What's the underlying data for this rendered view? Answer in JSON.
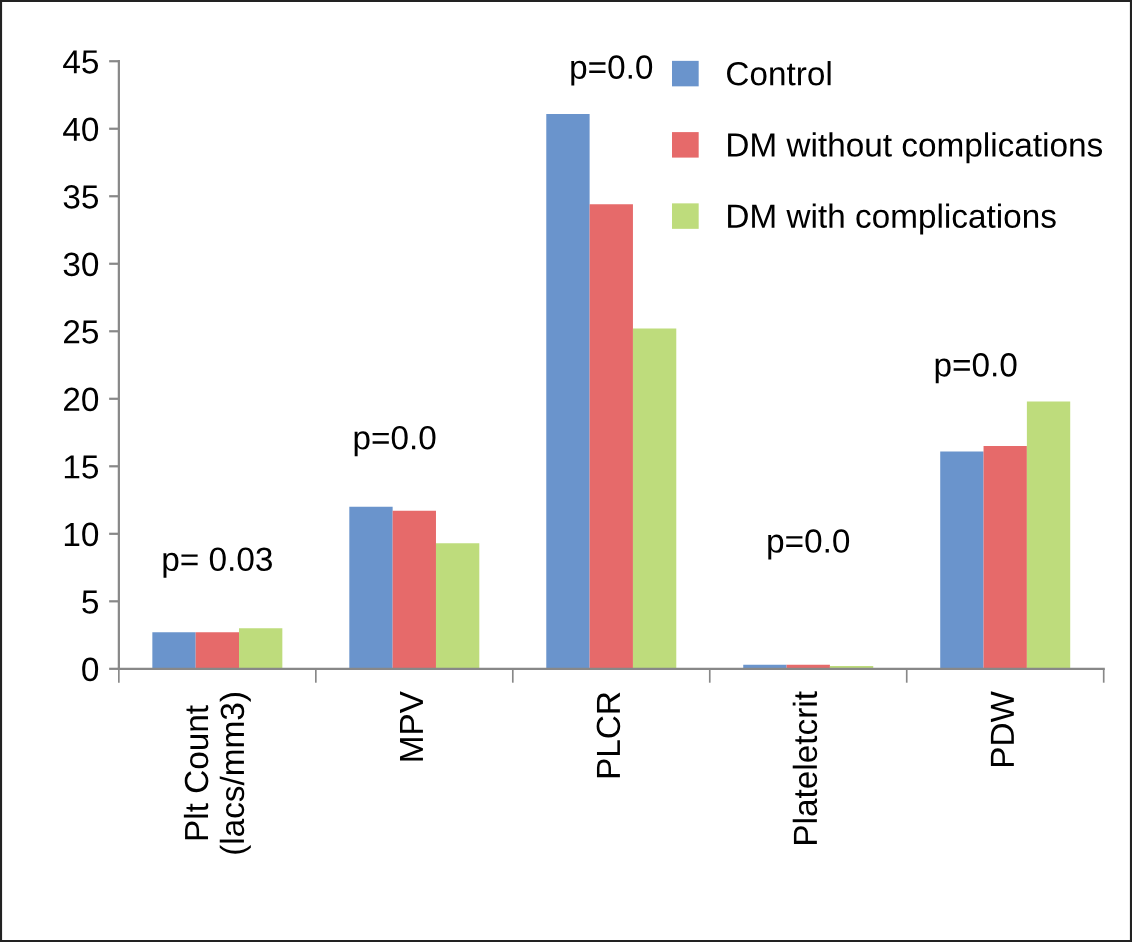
{
  "chart_data": {
    "type": "bar",
    "categories": [
      "Plt Count\n(lacs/mm3)",
      "MPV",
      "PLCR",
      "Plateletcrit",
      "PDW"
    ],
    "series": [
      {
        "name": "Control",
        "color": "#6a94cc",
        "values": [
          2.7,
          12.0,
          41.1,
          0.3,
          16.1
        ]
      },
      {
        "name": "DM without complications",
        "color": "#e66a6a",
        "values": [
          2.7,
          11.7,
          34.4,
          0.3,
          16.5
        ]
      },
      {
        "name": "DM with complications",
        "color": "#bedc7c",
        "values": [
          3.0,
          9.3,
          25.2,
          0.2,
          19.8
        ]
      }
    ],
    "ylim": [
      0,
      45
    ],
    "yticks": [
      0,
      5,
      10,
      15,
      20,
      25,
      30,
      35,
      40,
      45
    ],
    "annotations": [
      "p= 0.03",
      "p=0.0",
      "p=0.0",
      "p=0.0",
      "p=0.0"
    ],
    "grid": false,
    "legend": "top right"
  }
}
